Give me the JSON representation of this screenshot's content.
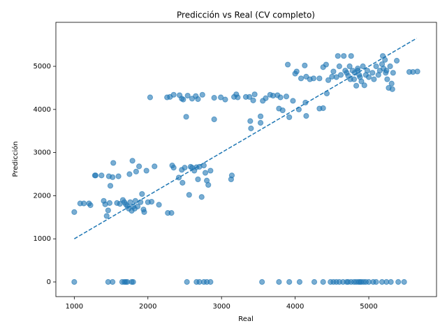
{
  "chart_data": {
    "type": "scatter",
    "title": "Predicción vs Real (CV completo)",
    "x_label": "Real",
    "y_label": "Predicción",
    "xlim": [
      750,
      5920
    ],
    "ylim": [
      -340,
      6020
    ],
    "xticks": [
      1000,
      2000,
      3000,
      4000,
      5000
    ],
    "yticks": [
      0,
      1000,
      2000,
      3000,
      4000,
      5000
    ],
    "series": [
      {
        "color": "#1f77b4",
        "x": [
          1000,
          1460,
          1520,
          1650,
          1680,
          1700,
          1720,
          1780,
          1800,
          2530,
          2660,
          2700,
          2760,
          2800,
          2850,
          3550,
          3780,
          3920,
          4060,
          4260,
          4380,
          4480,
          4520,
          4560,
          4600,
          4650,
          4700,
          4720,
          4760,
          4800,
          4830,
          4860,
          4880,
          4900,
          4930,
          4960,
          5000,
          5060,
          5100,
          5180,
          5240,
          5300,
          5400,
          5480,
          1000,
          1080,
          1130,
          1200,
          1220,
          1280,
          1290,
          1370,
          1400,
          1420,
          1440,
          1460,
          1470,
          1480,
          1490,
          1520,
          1530,
          1580,
          1600,
          1620,
          1660,
          1680,
          1700,
          1720,
          1740,
          1750,
          1760,
          1780,
          1790,
          1800,
          1820,
          1830,
          1840,
          1860,
          1880,
          1900,
          1920,
          1940,
          1950,
          1980,
          2000,
          2050,
          2090,
          2150,
          2270,
          2320,
          2330,
          2350,
          2420,
          2460,
          2470,
          2500,
          2560,
          2580,
          2600,
          2630,
          2660,
          2680,
          2700,
          2730,
          2760,
          2780,
          2800,
          2820,
          2850,
          3130,
          3140,
          2030,
          2260,
          2300,
          2350,
          2430,
          2460,
          2480,
          2520,
          2540,
          2600,
          2650,
          2680,
          2740,
          2900,
          2900,
          2990,
          3050,
          3170,
          3200,
          3220,
          3330,
          3380,
          3390,
          3400,
          3430,
          3450,
          3530,
          3530,
          3560,
          3600,
          3660,
          3700,
          3760,
          3780,
          3800,
          3830,
          3880,
          3900,
          3920,
          3970,
          4000,
          4020,
          4050,
          4080,
          4130,
          4140,
          4150,
          4150,
          4200,
          4250,
          4330,
          4330,
          4380,
          4380,
          4420,
          4430,
          4450,
          4500,
          4520,
          4560,
          4580,
          4600,
          4620,
          4660,
          4680,
          4700,
          4720,
          4740,
          4760,
          4780,
          4800,
          4810,
          4830,
          4850,
          4870,
          4900,
          4920,
          4940,
          4960,
          4980,
          5000,
          5050,
          5070,
          5100,
          5130,
          5150,
          5180,
          5190,
          5200,
          5220,
          5240,
          5250,
          5270,
          5290,
          5310,
          5320,
          5330,
          5380,
          5550,
          5600,
          5660,
          4850,
          4880,
          4750,
          5230
        ],
        "values": [
          0,
          0,
          0,
          0,
          0,
          0,
          0,
          0,
          0,
          0,
          0,
          0,
          0,
          0,
          0,
          0,
          0,
          0,
          0,
          0,
          0,
          0,
          0,
          0,
          0,
          0,
          0,
          0,
          0,
          0,
          0,
          0,
          0,
          0,
          0,
          0,
          0,
          0,
          0,
          0,
          0,
          0,
          0,
          0,
          1620,
          1820,
          1820,
          1820,
          1780,
          2470,
          2470,
          2470,
          1880,
          1800,
          1530,
          1660,
          2450,
          1830,
          2230,
          2430,
          2760,
          1830,
          2450,
          1810,
          1900,
          1850,
          1800,
          1760,
          1700,
          2500,
          1850,
          1650,
          2810,
          1750,
          1700,
          1880,
          2560,
          1750,
          2680,
          1850,
          2040,
          1680,
          1620,
          2580,
          1850,
          1860,
          2680,
          1790,
          1600,
          1600,
          2700,
          2650,
          2420,
          2600,
          2300,
          2650,
          2020,
          2670,
          2650,
          2580,
          2660,
          2380,
          2670,
          1970,
          2700,
          2530,
          2350,
          2250,
          2580,
          2380,
          2470,
          4280,
          4280,
          4290,
          4340,
          4330,
          4250,
          4230,
          3830,
          4320,
          4250,
          4310,
          4240,
          4340,
          4270,
          3770,
          4280,
          4230,
          4290,
          4350,
          4280,
          4290,
          4290,
          3730,
          3560,
          4210,
          4350,
          3840,
          3690,
          4200,
          4260,
          4340,
          4320,
          4330,
          4020,
          4280,
          3980,
          4300,
          5040,
          3820,
          4200,
          4830,
          4880,
          4000,
          4720,
          5020,
          4160,
          4760,
          3850,
          4700,
          4720,
          4020,
          4720,
          4030,
          4980,
          5040,
          4370,
          4680,
          4760,
          4880,
          4750,
          5240,
          5000,
          4800,
          5240,
          4900,
          4850,
          4780,
          5000,
          5240,
          4900,
          4700,
          4850,
          4550,
          4950,
          4800,
          4650,
          5000,
          4560,
          4800,
          4900,
          4750,
          4850,
          4700,
          5000,
          4800,
          4900,
          5050,
          5240,
          4950,
          5150,
          4900,
          4700,
          4500,
          5000,
          4600,
          4470,
          4850,
          5130,
          4870,
          4870,
          4880,
          4900,
          4750,
          4700,
          4850
        ]
      }
    ],
    "reference_line": {
      "x": [
        1000,
        5650
      ],
      "values": [
        1000,
        5650
      ],
      "color": "#1f77b4",
      "style": "dashed"
    }
  }
}
